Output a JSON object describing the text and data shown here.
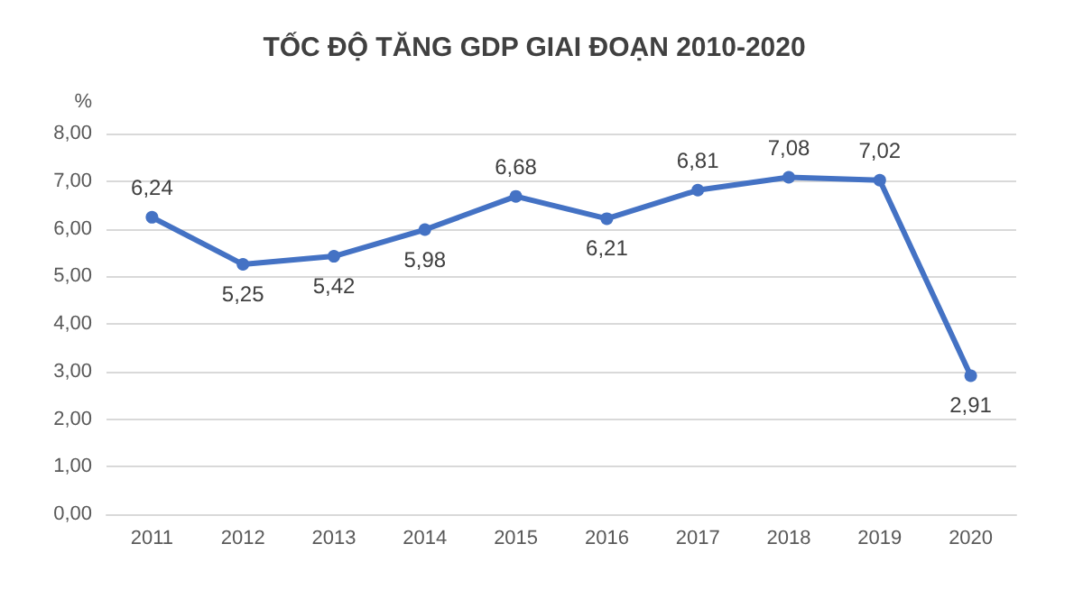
{
  "chart_data": {
    "type": "line",
    "title": "TỐC ĐỘ TĂNG GDP GIAI ĐOẠN 2010-2020",
    "ylabel": "%",
    "categories": [
      "2011",
      "2012",
      "2013",
      "2014",
      "2015",
      "2016",
      "2017",
      "2018",
      "2019",
      "2020"
    ],
    "series": [
      {
        "color": "#4472c4",
        "values": [
          6.24,
          5.25,
          5.42,
          5.98,
          6.68,
          6.21,
          6.81,
          7.08,
          7.02,
          2.91
        ],
        "value_labels": [
          "6,24",
          "5,25",
          "5,42",
          "5,98",
          "6,68",
          "6,21",
          "6,81",
          "7,08",
          "7,02",
          "2,91"
        ]
      }
    ],
    "ylim": [
      0,
      8
    ],
    "yticks": [
      {
        "value": 0,
        "label": "0,00"
      },
      {
        "value": 1,
        "label": "1,00"
      },
      {
        "value": 2,
        "label": "2,00"
      },
      {
        "value": 3,
        "label": "3,00"
      },
      {
        "value": 4,
        "label": "4,00"
      },
      {
        "value": 5,
        "label": "5,00"
      },
      {
        "value": 6,
        "label": "6,00"
      },
      {
        "value": 7,
        "label": "7,00"
      },
      {
        "value": 8,
        "label": "8,00"
      }
    ],
    "grid": "y",
    "marker": "circle",
    "line_style": "solid"
  }
}
